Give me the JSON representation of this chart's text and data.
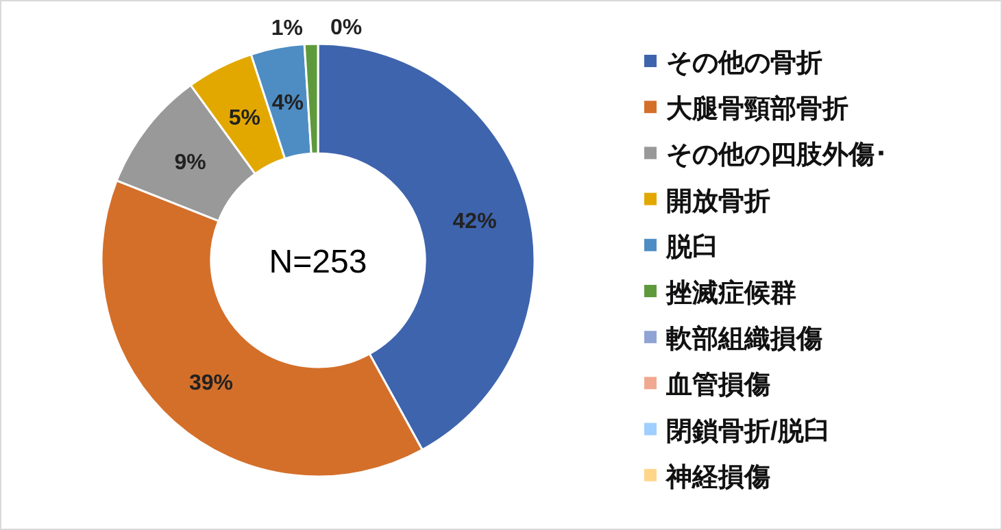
{
  "chart_data": {
    "type": "donut",
    "categories": [
      "その他の骨折",
      "大腿骨頸部骨折",
      "その他の四肢外傷･",
      "開放骨折",
      "脱臼",
      "挫滅症候群",
      "軟部組織損傷",
      "血管損傷",
      "閉鎖骨折/脱臼",
      "神経損傷"
    ],
    "values": [
      42,
      39,
      9,
      5,
      4,
      1,
      0,
      0,
      0,
      0
    ],
    "colors": [
      "#3e64ad",
      "#d46f2a",
      "#999999",
      "#e2a800",
      "#4e8dc3",
      "#5e9a3c",
      "#8fa3d4",
      "#f0a890",
      "#9fcfff",
      "#ffd58a"
    ],
    "value_labels": [
      "42%",
      "39%",
      "9%",
      "5%",
      "4%",
      "1%",
      "0%",
      null,
      null,
      null
    ],
    "annotations": [
      "N=253"
    ],
    "legend": "right"
  }
}
